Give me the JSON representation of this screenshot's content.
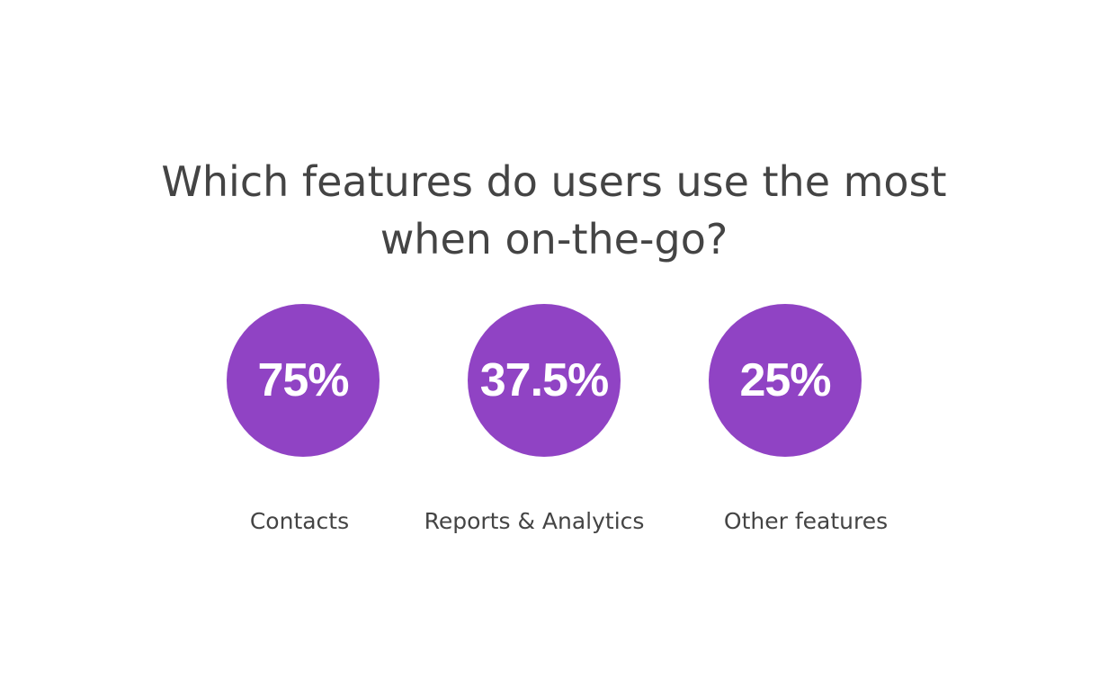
{
  "title_lines": [
    "Which features do users use the most",
    "when on-the-go?"
  ],
  "colors": {
    "circle_fill": "#9043c4",
    "value_text": "#ffffff",
    "label_text": "#444444",
    "title_text": "#444444"
  },
  "chart_data": {
    "type": "bar",
    "title": "Which features do users use the most when on-the-go?",
    "categories": [
      "Contacts",
      "Reports & Analytics",
      "Other features"
    ],
    "values": [
      75,
      37.5,
      25
    ],
    "value_labels": [
      "75%",
      "37.5%",
      "25%"
    ],
    "unit": "%"
  }
}
